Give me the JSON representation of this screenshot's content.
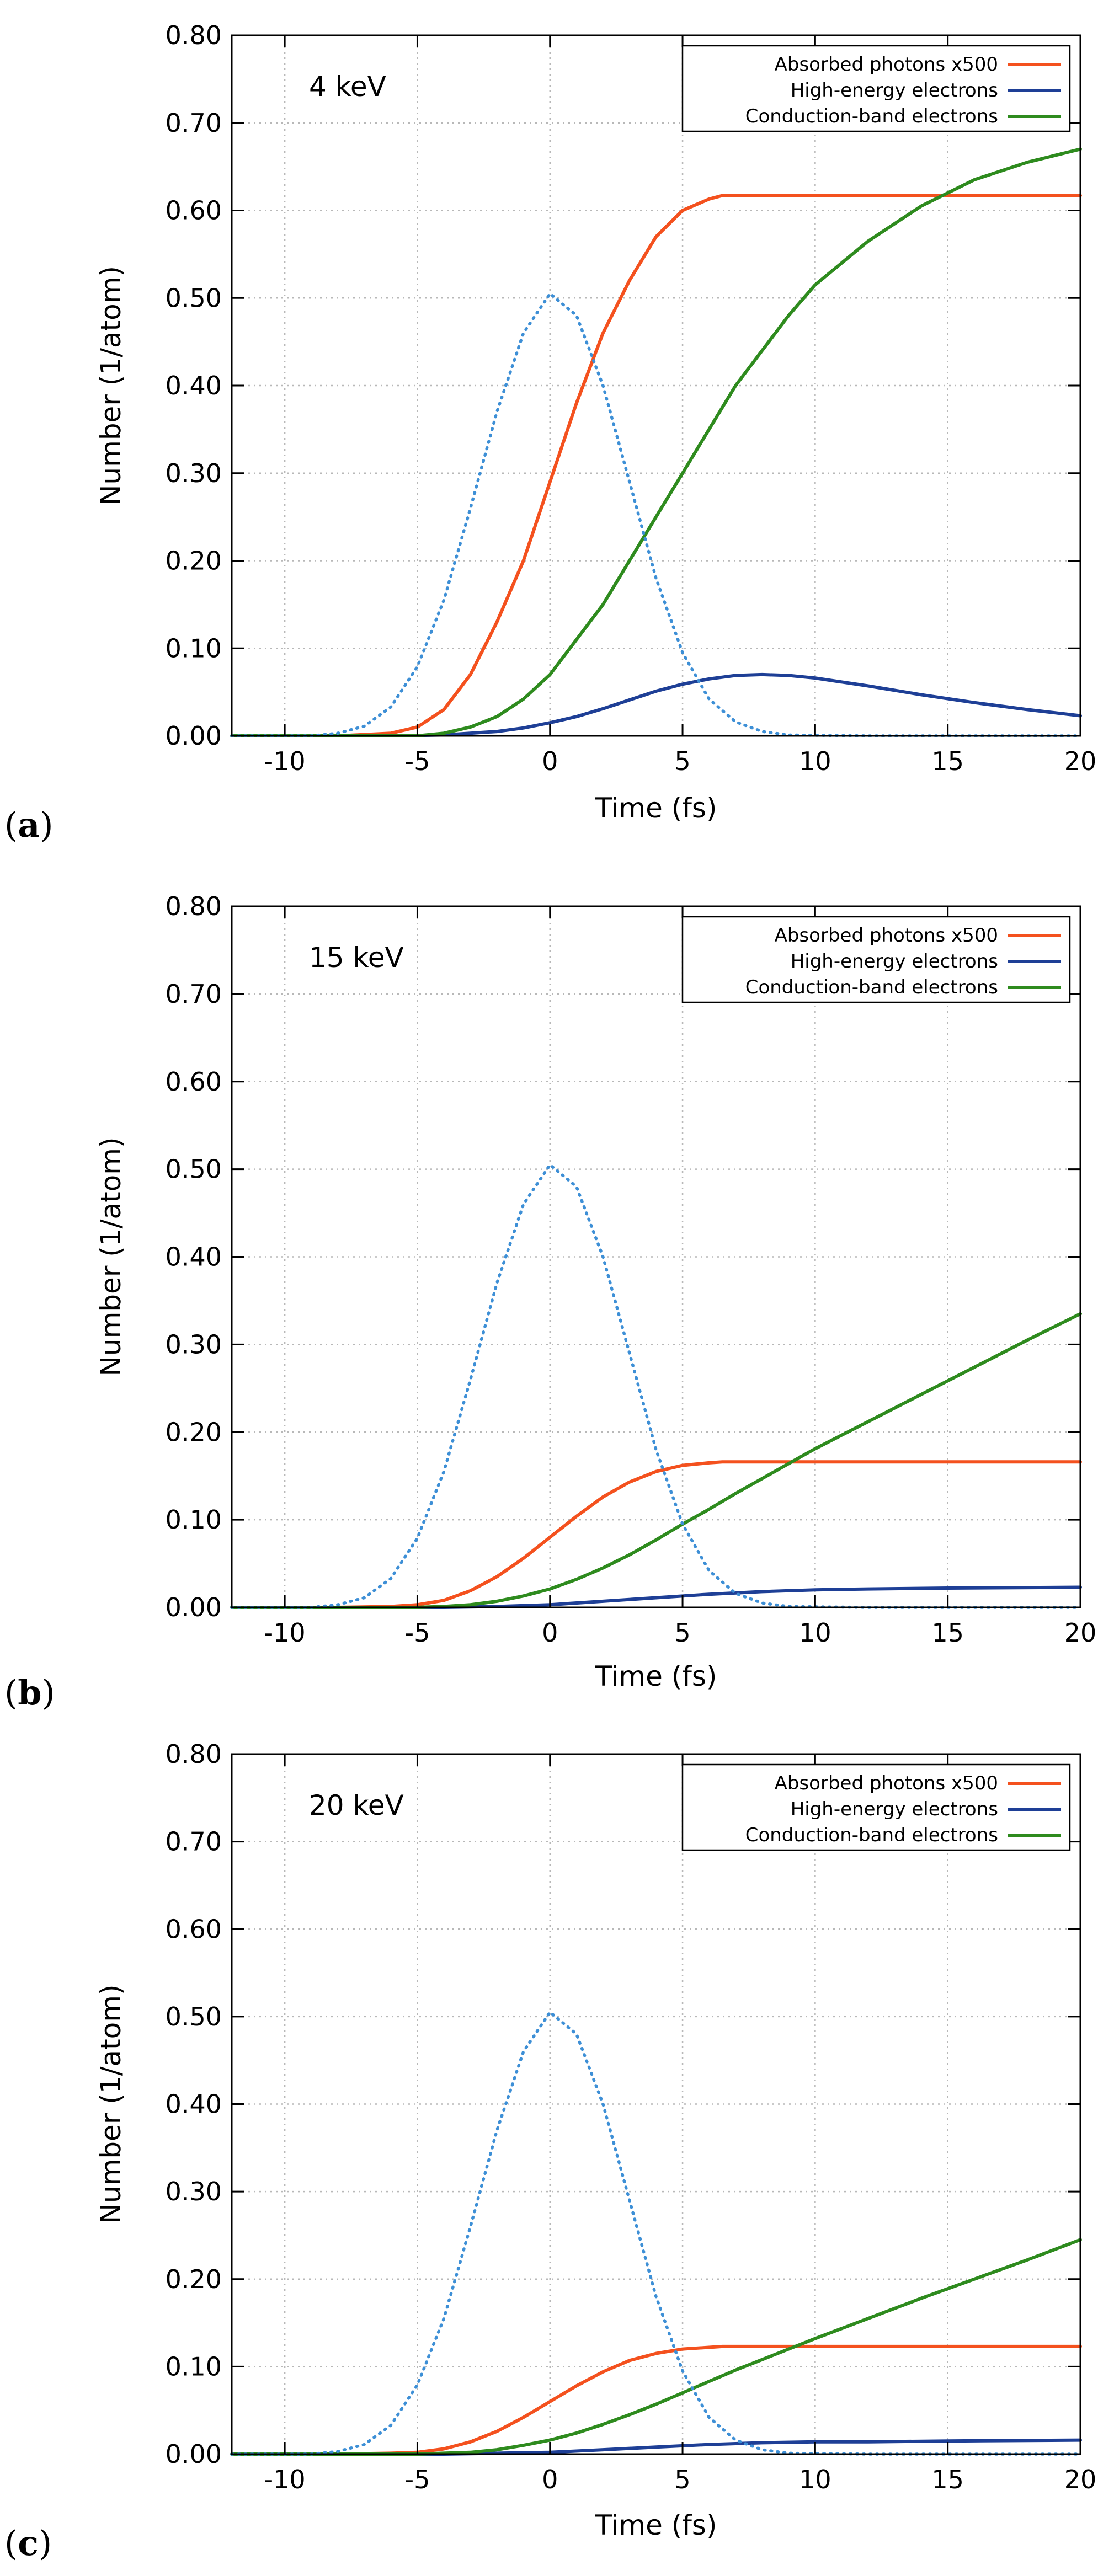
{
  "chart_data": [
    {
      "type": "line",
      "panel_label": "a",
      "annotation": "4 keV",
      "xlabel": "Time (fs)",
      "ylabel": "Number (1/atom)",
      "xlim": [
        -12,
        20
      ],
      "ylim": [
        0,
        0.8
      ],
      "xticks": [
        -10,
        -5,
        0,
        5,
        10,
        15,
        20
      ],
      "yticks": [
        0.0,
        0.1,
        0.2,
        0.3,
        0.4,
        0.5,
        0.6,
        0.7,
        0.8
      ],
      "xtick_labels": [
        "-10",
        "-5",
        "0",
        "5",
        "10",
        "15",
        "20"
      ],
      "ytick_labels": [
        "0.00",
        "0.10",
        "0.20",
        "0.30",
        "0.40",
        "0.50",
        "0.60",
        "0.70",
        "0.80"
      ],
      "grid": true,
      "legend_position": "top-right",
      "series": [
        {
          "name": "Absorbed photons x500",
          "color": "#f4511e",
          "style": "solid",
          "in_legend": true,
          "x": [
            -12,
            -8,
            -6,
            -5,
            -4,
            -3,
            -2,
            -1,
            0,
            1,
            2,
            3,
            4,
            5,
            6,
            6.5,
            8,
            10,
            15,
            20
          ],
          "y": [
            0,
            0,
            0.003,
            0.01,
            0.03,
            0.07,
            0.13,
            0.2,
            0.29,
            0.38,
            0.46,
            0.52,
            0.57,
            0.6,
            0.613,
            0.617,
            0.617,
            0.617,
            0.617,
            0.617
          ]
        },
        {
          "name": "High-energy electrons",
          "color": "#1e3f96",
          "style": "solid",
          "in_legend": true,
          "x": [
            -12,
            -6,
            -4,
            -2,
            -1,
            0,
            1,
            2,
            3,
            4,
            5,
            6,
            7,
            8,
            9,
            10,
            12,
            14,
            16,
            18,
            20
          ],
          "y": [
            0,
            0,
            0.001,
            0.005,
            0.009,
            0.015,
            0.022,
            0.031,
            0.041,
            0.051,
            0.059,
            0.065,
            0.069,
            0.07,
            0.069,
            0.066,
            0.057,
            0.047,
            0.038,
            0.03,
            0.023
          ]
        },
        {
          "name": "Conduction-band electrons",
          "color": "#2e8b1e",
          "style": "solid",
          "in_legend": true,
          "x": [
            -12,
            -5,
            -4,
            -3,
            -2,
            -1,
            0,
            1,
            2,
            3,
            4,
            5,
            6,
            7,
            8,
            9,
            10,
            12,
            14,
            16,
            18,
            20
          ],
          "y": [
            0,
            0,
            0.003,
            0.01,
            0.022,
            0.042,
            0.07,
            0.11,
            0.15,
            0.2,
            0.25,
            0.3,
            0.35,
            0.4,
            0.44,
            0.48,
            0.515,
            0.565,
            0.605,
            0.635,
            0.655,
            0.67
          ]
        },
        {
          "name": "pulse",
          "color": "#3d8fd6",
          "style": "dotted",
          "in_legend": false,
          "x": [
            -12,
            -9,
            -8,
            -7,
            -6,
            -5,
            -4,
            -3,
            -2,
            -1,
            0,
            1,
            2,
            3,
            4,
            5,
            6,
            7,
            8,
            9,
            12,
            20
          ],
          "y": [
            0,
            0,
            0.003,
            0.011,
            0.033,
            0.079,
            0.155,
            0.26,
            0.37,
            0.46,
            0.505,
            0.48,
            0.4,
            0.29,
            0.18,
            0.095,
            0.042,
            0.016,
            0.005,
            0.001,
            0,
            0
          ]
        }
      ]
    },
    {
      "type": "line",
      "panel_label": "b",
      "annotation": "15 keV",
      "xlabel": "Time (fs)",
      "ylabel": "Number (1/atom)",
      "xlim": [
        -12,
        20
      ],
      "ylim": [
        0,
        0.8
      ],
      "xticks": [
        -10,
        -5,
        0,
        5,
        10,
        15,
        20
      ],
      "yticks": [
        0.0,
        0.1,
        0.2,
        0.3,
        0.4,
        0.5,
        0.6,
        0.7,
        0.8
      ],
      "xtick_labels": [
        "-10",
        "-5",
        "0",
        "5",
        "10",
        "15",
        "20"
      ],
      "ytick_labels": [
        "0.00",
        "0.10",
        "0.20",
        "0.30",
        "0.40",
        "0.50",
        "0.60",
        "0.70",
        "0.80"
      ],
      "grid": true,
      "legend_position": "top-right",
      "series": [
        {
          "name": "Absorbed photons x500",
          "color": "#f4511e",
          "style": "solid",
          "in_legend": true,
          "x": [
            -12,
            -8,
            -6,
            -5,
            -4,
            -3,
            -2,
            -1,
            0,
            1,
            2,
            3,
            4,
            5,
            6,
            6.5,
            8,
            10,
            15,
            20
          ],
          "y": [
            0,
            0,
            0.001,
            0.003,
            0.008,
            0.019,
            0.035,
            0.056,
            0.08,
            0.104,
            0.126,
            0.143,
            0.155,
            0.162,
            0.165,
            0.166,
            0.166,
            0.166,
            0.166,
            0.166
          ]
        },
        {
          "name": "High-energy electrons",
          "color": "#1e3f96",
          "style": "solid",
          "in_legend": true,
          "x": [
            -12,
            -4,
            -2,
            0,
            2,
            4,
            6,
            8,
            10,
            12,
            15,
            20
          ],
          "y": [
            0,
            0,
            0.001,
            0.003,
            0.007,
            0.011,
            0.015,
            0.018,
            0.02,
            0.021,
            0.022,
            0.023
          ]
        },
        {
          "name": "Conduction-band electrons",
          "color": "#2e8b1e",
          "style": "solid",
          "in_legend": true,
          "x": [
            -12,
            -5,
            -4,
            -3,
            -2,
            -1,
            0,
            1,
            2,
            3,
            4,
            5,
            6,
            7,
            8,
            9,
            10,
            12,
            14,
            16,
            18,
            20
          ],
          "y": [
            0,
            0,
            0.001,
            0.003,
            0.007,
            0.013,
            0.021,
            0.032,
            0.045,
            0.06,
            0.077,
            0.095,
            0.112,
            0.13,
            0.147,
            0.164,
            0.181,
            0.212,
            0.243,
            0.274,
            0.305,
            0.335
          ]
        },
        {
          "name": "pulse",
          "color": "#3d8fd6",
          "style": "dotted",
          "in_legend": false,
          "x": [
            -12,
            -9,
            -8,
            -7,
            -6,
            -5,
            -4,
            -3,
            -2,
            -1,
            0,
            1,
            2,
            3,
            4,
            5,
            6,
            7,
            8,
            9,
            12,
            20
          ],
          "y": [
            0,
            0,
            0.003,
            0.011,
            0.033,
            0.079,
            0.155,
            0.26,
            0.37,
            0.46,
            0.505,
            0.48,
            0.4,
            0.29,
            0.18,
            0.095,
            0.042,
            0.016,
            0.005,
            0.001,
            0,
            0
          ]
        }
      ]
    },
    {
      "type": "line",
      "panel_label": "c",
      "annotation": "20 keV",
      "xlabel": "Time (fs)",
      "ylabel": "Number (1/atom)",
      "xlim": [
        -12,
        20
      ],
      "ylim": [
        0,
        0.8
      ],
      "xticks": [
        -10,
        -5,
        0,
        5,
        10,
        15,
        20
      ],
      "yticks": [
        0.0,
        0.1,
        0.2,
        0.3,
        0.4,
        0.5,
        0.6,
        0.7,
        0.8
      ],
      "xtick_labels": [
        "-10",
        "-5",
        "0",
        "5",
        "10",
        "15",
        "20"
      ],
      "ytick_labels": [
        "0.00",
        "0.10",
        "0.20",
        "0.30",
        "0.40",
        "0.50",
        "0.60",
        "0.70",
        "0.80"
      ],
      "grid": true,
      "legend_position": "top-right",
      "series": [
        {
          "name": "Absorbed photons x500",
          "color": "#f4511e",
          "style": "solid",
          "in_legend": true,
          "x": [
            -12,
            -8,
            -6,
            -5,
            -4,
            -3,
            -2,
            -1,
            0,
            1,
            2,
            3,
            4,
            5,
            6,
            6.5,
            8,
            10,
            15,
            20
          ],
          "y": [
            0,
            0,
            0.001,
            0.002,
            0.006,
            0.014,
            0.026,
            0.042,
            0.06,
            0.078,
            0.094,
            0.107,
            0.115,
            0.12,
            0.122,
            0.123,
            0.123,
            0.123,
            0.123,
            0.123
          ]
        },
        {
          "name": "High-energy electrons",
          "color": "#1e3f96",
          "style": "solid",
          "in_legend": true,
          "x": [
            -12,
            -4,
            -2,
            0,
            2,
            4,
            6,
            8,
            10,
            12,
            15,
            20
          ],
          "y": [
            0,
            0,
            0.001,
            0.002,
            0.005,
            0.008,
            0.011,
            0.013,
            0.014,
            0.014,
            0.015,
            0.016
          ]
        },
        {
          "name": "Conduction-band electrons",
          "color": "#2e8b1e",
          "style": "solid",
          "in_legend": true,
          "x": [
            -12,
            -5,
            -4,
            -3,
            -2,
            -1,
            0,
            1,
            2,
            3,
            4,
            5,
            6,
            7,
            8,
            9,
            10,
            12,
            14,
            16,
            18,
            20
          ],
          "y": [
            0,
            0,
            0.001,
            0.002,
            0.005,
            0.01,
            0.016,
            0.024,
            0.034,
            0.045,
            0.057,
            0.07,
            0.083,
            0.096,
            0.108,
            0.12,
            0.132,
            0.155,
            0.178,
            0.2,
            0.222,
            0.245
          ]
        },
        {
          "name": "pulse",
          "color": "#3d8fd6",
          "style": "dotted",
          "in_legend": false,
          "x": [
            -12,
            -9,
            -8,
            -7,
            -6,
            -5,
            -4,
            -3,
            -2,
            -1,
            0,
            1,
            2,
            3,
            4,
            5,
            6,
            7,
            8,
            9,
            12,
            20
          ],
          "y": [
            0,
            0,
            0.003,
            0.011,
            0.033,
            0.079,
            0.155,
            0.26,
            0.37,
            0.46,
            0.505,
            0.48,
            0.4,
            0.29,
            0.18,
            0.095,
            0.042,
            0.016,
            0.005,
            0.001,
            0,
            0
          ]
        }
      ]
    }
  ]
}
